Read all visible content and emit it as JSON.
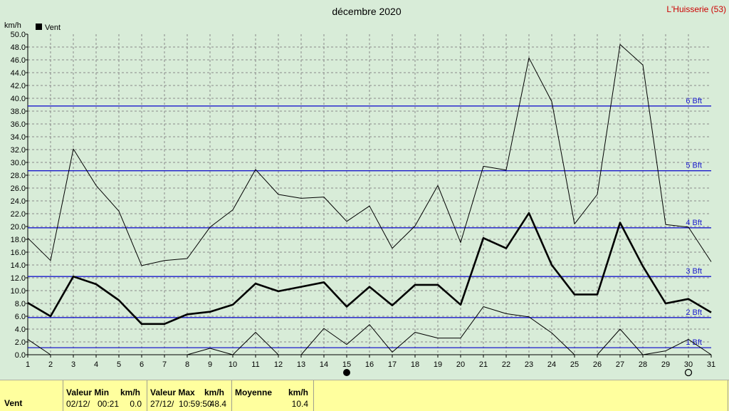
{
  "chart_data": {
    "type": "line",
    "title": "décembre 2020",
    "station": "L'Huisserie (53)",
    "ylabel": "km/h",
    "legend": "Vent",
    "legend_position": "top-left",
    "grid": true,
    "xlim": [
      1,
      31
    ],
    "ylim": [
      0,
      50
    ],
    "x": [
      1,
      2,
      3,
      4,
      5,
      6,
      7,
      8,
      9,
      10,
      11,
      12,
      13,
      14,
      15,
      16,
      17,
      18,
      19,
      20,
      21,
      22,
      23,
      24,
      25,
      26,
      27,
      28,
      29,
      30,
      31
    ],
    "y_ticks": [
      "0.0",
      "2.0",
      "4.0",
      "6.0",
      "8.0",
      "10.0",
      "12.0",
      "14.0",
      "16.0",
      "18.0",
      "20.0",
      "22.0",
      "24.0",
      "26.0",
      "28.0",
      "30.0",
      "32.0",
      "34.0",
      "36.0",
      "38.0",
      "40.0",
      "42.0",
      "44.0",
      "46.0",
      "48.0",
      "50.0"
    ],
    "series": [
      {
        "name": "Vent",
        "role": "mean",
        "values": [
          8.1,
          6.0,
          12.2,
          11.0,
          8.5,
          4.8,
          4.8,
          6.3,
          6.7,
          7.8,
          11.1,
          9.9,
          10.6,
          11.3,
          7.5,
          10.6,
          7.7,
          10.9,
          10.9,
          7.8,
          18.2,
          16.6,
          22.1,
          14.0,
          9.4,
          9.4,
          20.6,
          13.8,
          8.0,
          8.7,
          6.6
        ]
      },
      {
        "role": "max",
        "values": [
          18.2,
          14.7,
          32.1,
          26.4,
          22.4,
          13.9,
          14.7,
          15.0,
          19.9,
          22.6,
          28.9,
          25.0,
          24.4,
          24.6,
          20.8,
          23.2,
          16.6,
          20.1,
          26.4,
          17.5,
          29.4,
          28.8,
          46.3,
          39.5,
          20.4,
          25.0,
          48.4,
          45.2,
          20.3,
          19.9,
          14.5
        ]
      },
      {
        "role": "min",
        "values": [
          2.4,
          0.0,
          null,
          null,
          null,
          null,
          null,
          0.0,
          1.0,
          0.0,
          3.5,
          0.0,
          0.0,
          4.1,
          1.6,
          4.7,
          0.4,
          3.5,
          2.6,
          2.6,
          7.5,
          6.4,
          5.9,
          3.4,
          0.0,
          0.0,
          4.0,
          0.0,
          0.6,
          2.4,
          0.0
        ]
      }
    ],
    "beaufort": [
      {
        "label": "1 Bft",
        "value": 1.1
      },
      {
        "label": "2 Bft",
        "value": 5.8
      },
      {
        "label": "3 Bft",
        "value": 12.2
      },
      {
        "label": "4 Bft",
        "value": 19.8
      },
      {
        "label": "5 Bft",
        "value": 28.7
      },
      {
        "label": "6 Bft",
        "value": 38.8
      }
    ],
    "moon_phases": [
      {
        "day": 15,
        "phase": "new-moon"
      },
      {
        "day": 30,
        "phase": "full-moon"
      }
    ],
    "colors": {
      "background": "#d8ecd8",
      "beaufort_line": "#1a1acc",
      "grid": "#8a8a8a",
      "series": "#000000",
      "station": "#cc0000",
      "footer": "#ffff9e"
    }
  },
  "footer": {
    "series_label": "Vent",
    "min_header": "Valeur Min",
    "min_unit": "km/h",
    "min_date": "02/12/",
    "min_time": "00:21",
    "min_value": "0.0",
    "max_header": "Valeur Max",
    "max_unit": "km/h",
    "max_date": "27/12/",
    "max_time": "10:59:50",
    "max_value": "48.4",
    "mean_header": "Moyenne",
    "mean_unit": "km/h",
    "mean_value": "10.4"
  }
}
